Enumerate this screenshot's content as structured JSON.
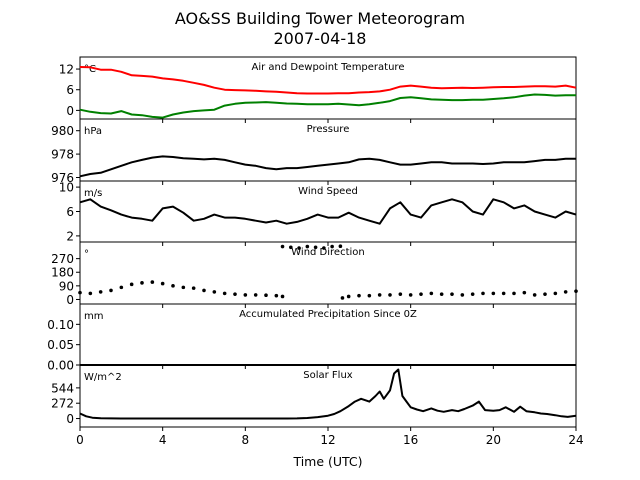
{
  "figure": {
    "title_line1": "AO&SS Building Tower Meteorogram",
    "title_line2": "2007-04-18",
    "xlabel": "Time (UTC)"
  },
  "x_axis": {
    "range": [
      0,
      24
    ],
    "ticks": [
      0,
      4,
      8,
      12,
      16,
      20,
      24
    ],
    "tick_labels": [
      "0",
      "4",
      "8",
      "12",
      "16",
      "20",
      "24"
    ]
  },
  "chart_data": [
    {
      "type": "line",
      "title": "Air and Dewpoint Temperature",
      "unit": "°C",
      "ylim": [
        -2.5,
        15.5
      ],
      "yticks": [
        0,
        6,
        12
      ],
      "ytick_labels": [
        "0",
        "6",
        "12"
      ],
      "series": [
        {
          "color": "#ff0000",
          "x": [
            0,
            0.5,
            1,
            1.5,
            2,
            2.5,
            3,
            3.5,
            4,
            4.5,
            5,
            5.5,
            6,
            6.5,
            7,
            7.5,
            8,
            8.5,
            9,
            9.5,
            10,
            10.5,
            11,
            11.5,
            12,
            12.5,
            13,
            13.5,
            14,
            14.5,
            15,
            15.5,
            16,
            16.5,
            17,
            17.5,
            18,
            18.5,
            19,
            19.5,
            20,
            20.5,
            21,
            21.5,
            22,
            22.5,
            23,
            23.5,
            24
          ],
          "values": [
            12.6,
            12.5,
            11.8,
            11.8,
            11.2,
            10.2,
            10.0,
            9.8,
            9.3,
            9.0,
            8.6,
            8.0,
            7.4,
            6.6,
            6.0,
            5.9,
            5.8,
            5.7,
            5.5,
            5.4,
            5.2,
            5.0,
            4.9,
            4.9,
            4.9,
            5.0,
            5.0,
            5.2,
            5.3,
            5.5,
            6.0,
            6.9,
            7.2,
            6.9,
            6.6,
            6.4,
            6.5,
            6.6,
            6.5,
            6.6,
            6.7,
            6.8,
            6.8,
            6.9,
            7.0,
            7.0,
            6.9,
            7.2,
            6.6
          ]
        },
        {
          "color": "#008000",
          "x": [
            0,
            0.5,
            1,
            1.5,
            2,
            2.5,
            3,
            3.5,
            4,
            4.5,
            5,
            5.5,
            6,
            6.5,
            7,
            7.5,
            8,
            8.5,
            9,
            9.5,
            10,
            10.5,
            11,
            11.5,
            12,
            12.5,
            13,
            13.5,
            14,
            14.5,
            15,
            15.5,
            16,
            16.5,
            17,
            17.5,
            18,
            18.5,
            19,
            19.5,
            20,
            20.5,
            21,
            21.5,
            22,
            22.5,
            23,
            23.5,
            24
          ],
          "values": [
            0.2,
            -0.4,
            -0.8,
            -0.9,
            -0.2,
            -1.2,
            -1.4,
            -1.9,
            -2.1,
            -1.2,
            -0.6,
            -0.2,
            0.0,
            0.2,
            1.4,
            1.9,
            2.2,
            2.3,
            2.4,
            2.2,
            2.0,
            1.9,
            1.8,
            1.8,
            1.8,
            1.9,
            1.7,
            1.5,
            1.8,
            2.2,
            2.7,
            3.6,
            3.8,
            3.5,
            3.2,
            3.1,
            3.0,
            3.0,
            3.1,
            3.1,
            3.3,
            3.5,
            3.8,
            4.3,
            4.6,
            4.5,
            4.3,
            4.4,
            4.4
          ]
        }
      ]
    },
    {
      "type": "line",
      "title": "Pressure",
      "unit": "hPa",
      "ylim": [
        975.7,
        981.0
      ],
      "yticks": [
        976,
        978,
        980
      ],
      "ytick_labels": [
        "976",
        "978",
        "980"
      ],
      "series": [
        {
          "color": "#000000",
          "x": [
            0,
            0.5,
            1,
            1.5,
            2,
            2.5,
            3,
            3.5,
            4,
            4.5,
            5,
            5.5,
            6,
            6.5,
            7,
            7.5,
            8,
            8.5,
            9,
            9.5,
            10,
            10.5,
            11,
            11.5,
            12,
            12.5,
            13,
            13.5,
            14,
            14.5,
            15,
            15.5,
            16,
            16.5,
            17,
            17.5,
            18,
            18.5,
            19,
            19.5,
            20,
            20.5,
            21,
            21.5,
            22,
            22.5,
            23,
            23.5,
            24
          ],
          "values": [
            976.1,
            976.3,
            976.4,
            976.7,
            977.0,
            977.3,
            977.5,
            977.7,
            977.8,
            977.75,
            977.65,
            977.6,
            977.55,
            977.6,
            977.5,
            977.3,
            977.1,
            977.0,
            976.8,
            976.7,
            976.8,
            976.8,
            976.9,
            977.0,
            977.1,
            977.2,
            977.3,
            977.55,
            977.6,
            977.5,
            977.3,
            977.1,
            977.1,
            977.2,
            977.3,
            977.3,
            977.2,
            977.2,
            977.2,
            977.15,
            977.2,
            977.3,
            977.3,
            977.3,
            977.4,
            977.5,
            977.5,
            977.6,
            977.6
          ]
        }
      ]
    },
    {
      "type": "line",
      "title": "Wind Speed",
      "unit": "m/s",
      "ylim": [
        1.0,
        11.0
      ],
      "yticks": [
        2,
        6,
        10
      ],
      "ytick_labels": [
        "2",
        "6",
        "10"
      ],
      "series": [
        {
          "color": "#000000",
          "x": [
            0,
            0.5,
            1,
            1.5,
            2,
            2.5,
            3,
            3.5,
            4,
            4.5,
            5,
            5.5,
            6,
            6.5,
            7,
            7.5,
            8,
            8.5,
            9,
            9.5,
            10,
            10.5,
            11,
            11.5,
            12,
            12.5,
            13,
            13.5,
            14,
            14.5,
            15,
            15.5,
            16,
            16.5,
            17,
            17.5,
            18,
            18.5,
            19,
            19.5,
            20,
            20.5,
            21,
            21.5,
            22,
            22.5,
            23,
            23.5,
            24
          ],
          "values": [
            7.5,
            8.0,
            6.8,
            6.2,
            5.5,
            5.0,
            4.8,
            4.5,
            6.5,
            6.8,
            5.8,
            4.5,
            4.8,
            5.5,
            5.0,
            5.0,
            4.8,
            4.5,
            4.2,
            4.5,
            4.0,
            4.3,
            4.8,
            5.5,
            5.0,
            5.0,
            5.8,
            5.0,
            4.5,
            4.0,
            6.5,
            7.5,
            5.5,
            5.0,
            7.0,
            7.5,
            8.0,
            7.5,
            6.0,
            5.5,
            8.0,
            7.5,
            6.5,
            7.0,
            6.0,
            5.5,
            5.0,
            6.0,
            5.5
          ]
        }
      ]
    },
    {
      "type": "scatter",
      "title": "Wind Direction",
      "unit": "°",
      "ylim": [
        -30,
        380
      ],
      "yticks": [
        0,
        90,
        180,
        270
      ],
      "ytick_labels": [
        "0",
        "90",
        "180",
        "270"
      ],
      "series": [
        {
          "color": "#000000",
          "x": [
            0,
            0.5,
            1,
            1.5,
            2,
            2.5,
            3,
            3.5,
            4,
            4.5,
            5,
            5.5,
            6,
            6.5,
            7,
            7.5,
            8,
            8.5,
            9,
            9.5,
            9.8,
            12.7,
            13,
            13.5,
            14,
            14.5,
            15,
            15.5,
            16,
            16.5,
            17,
            17.5,
            18,
            18.5,
            19,
            19.5,
            20,
            20.5,
            21,
            21.5,
            22,
            22.5,
            23,
            23.5,
            24
          ],
          "values": [
            45,
            40,
            50,
            60,
            80,
            100,
            110,
            115,
            105,
            90,
            80,
            75,
            60,
            50,
            40,
            35,
            30,
            30,
            28,
            25,
            20,
            10,
            20,
            25,
            25,
            30,
            30,
            35,
            30,
            35,
            40,
            35,
            35,
            30,
            35,
            40,
            40,
            40,
            40,
            45,
            30,
            35,
            40,
            50,
            55
          ]
        },
        {
          "color": "#000000",
          "x": [
            9.8,
            10.2,
            10.6,
            11.0,
            11.4,
            11.8,
            12.2,
            12.6
          ],
          "values": [
            350,
            345,
            340,
            350,
            345,
            340,
            350,
            352
          ]
        }
      ]
    },
    {
      "type": "line",
      "title": "Accumulated Precipitation Since 0Z",
      "unit": "mm",
      "ylim": [
        0,
        0.15
      ],
      "yticks": [
        0.0,
        0.05,
        0.1
      ],
      "ytick_labels": [
        "0.00",
        "0.05",
        "0.10"
      ],
      "series": [
        {
          "color": "#000000",
          "x": [
            0,
            24
          ],
          "values": [
            0.0,
            0.0
          ]
        }
      ]
    },
    {
      "type": "line",
      "title": "Solar Flux",
      "unit": "W/m^2",
      "ylim": [
        -150,
        950
      ],
      "yticks": [
        0,
        272,
        544
      ],
      "ytick_labels": [
        "0",
        "272",
        "544"
      ],
      "series": [
        {
          "color": "#000000",
          "x": [
            0,
            0.3,
            0.6,
            1,
            2,
            4,
            6,
            8,
            10,
            10.5,
            11,
            11.5,
            12,
            12.3,
            12.6,
            13,
            13.3,
            13.6,
            14,
            14.3,
            14.5,
            14.7,
            15.0,
            15.2,
            15.4,
            15.6,
            15.8,
            16.0,
            16.3,
            16.6,
            17,
            17.3,
            17.6,
            18,
            18.3,
            18.6,
            19,
            19.3,
            19.6,
            20,
            20.3,
            20.6,
            21,
            21.3,
            21.6,
            22,
            22.3,
            22.6,
            23,
            23.3,
            23.6,
            24
          ],
          "values": [
            90,
            40,
            15,
            5,
            0,
            0,
            0,
            0,
            0,
            2,
            10,
            25,
            50,
            80,
            130,
            220,
            300,
            350,
            300,
            400,
            480,
            350,
            500,
            800,
            870,
            400,
            300,
            200,
            160,
            130,
            180,
            140,
            120,
            150,
            130,
            170,
            230,
            300,
            150,
            140,
            150,
            200,
            120,
            210,
            130,
            110,
            90,
            80,
            60,
            40,
            30,
            50
          ]
        }
      ]
    }
  ]
}
